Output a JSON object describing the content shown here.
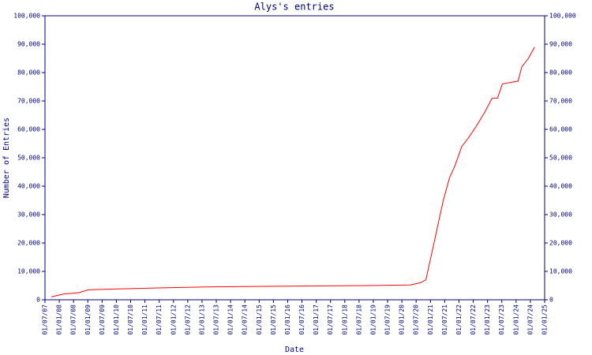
{
  "chart_data": {
    "type": "line",
    "title": "Alys's entries",
    "x_label": "Date",
    "y_label": "Number of Entries",
    "x": [
      2007.72,
      2008.14,
      2008.69,
      2009.02,
      2009.65,
      2010.76,
      2011.59,
      2013.05,
      2015.87,
      2018.77,
      2020.29,
      2020.65,
      2020.84,
      2021.06,
      2021.45,
      2021.67,
      2021.85,
      2022.1,
      2022.33,
      2022.6,
      2022.9,
      2023.16,
      2023.35,
      2023.52,
      2024.07,
      2024.2,
      2024.43,
      2024.65
    ],
    "series": [
      {
        "name": "Entries",
        "color": "#ff0000",
        "values": [
          1000,
          2000,
          2500,
          3500,
          3700,
          4000,
          4200,
          4500,
          4800,
          5000,
          5200,
          6000,
          7000,
          17000,
          35000,
          43000,
          47000,
          54000,
          57000,
          61000,
          66000,
          71000,
          71000,
          76000,
          77000,
          82000,
          85000,
          89000
        ]
      }
    ],
    "xlim": [
      2007.5,
      2025.0
    ],
    "xticks": [
      {
        "value": 2007.5,
        "label": "01/07/07"
      },
      {
        "value": 2008.0,
        "label": "01/01/08"
      },
      {
        "value": 2008.5,
        "label": "01/07/08"
      },
      {
        "value": 2009.0,
        "label": "01/01/09"
      },
      {
        "value": 2009.5,
        "label": "01/07/09"
      },
      {
        "value": 2010.0,
        "label": "01/01/10"
      },
      {
        "value": 2010.5,
        "label": "01/07/10"
      },
      {
        "value": 2011.0,
        "label": "01/01/11"
      },
      {
        "value": 2011.5,
        "label": "01/07/11"
      },
      {
        "value": 2012.0,
        "label": "01/01/12"
      },
      {
        "value": 2012.5,
        "label": "01/07/12"
      },
      {
        "value": 2013.0,
        "label": "01/01/13"
      },
      {
        "value": 2013.5,
        "label": "01/07/13"
      },
      {
        "value": 2014.0,
        "label": "01/01/14"
      },
      {
        "value": 2014.5,
        "label": "01/07/14"
      },
      {
        "value": 2015.0,
        "label": "01/01/15"
      },
      {
        "value": 2015.5,
        "label": "01/07/15"
      },
      {
        "value": 2016.0,
        "label": "01/01/16"
      },
      {
        "value": 2016.5,
        "label": "01/07/16"
      },
      {
        "value": 2017.0,
        "label": "01/01/17"
      },
      {
        "value": 2017.5,
        "label": "01/07/17"
      },
      {
        "value": 2018.0,
        "label": "01/01/18"
      },
      {
        "value": 2018.5,
        "label": "01/07/18"
      },
      {
        "value": 2019.0,
        "label": "01/01/19"
      },
      {
        "value": 2019.5,
        "label": "01/07/19"
      },
      {
        "value": 2020.0,
        "label": "01/01/20"
      },
      {
        "value": 2020.5,
        "label": "01/07/20"
      },
      {
        "value": 2021.0,
        "label": "01/01/21"
      },
      {
        "value": 2021.5,
        "label": "01/07/21"
      },
      {
        "value": 2022.0,
        "label": "01/01/22"
      },
      {
        "value": 2022.5,
        "label": "01/07/22"
      },
      {
        "value": 2023.0,
        "label": "01/01/23"
      },
      {
        "value": 2023.5,
        "label": "01/07/23"
      },
      {
        "value": 2024.0,
        "label": "01/01/24"
      },
      {
        "value": 2024.5,
        "label": "01/07/24"
      },
      {
        "value": 2025.0,
        "label": "01/01/25"
      }
    ],
    "ylim": [
      0,
      100000
    ],
    "yticks": [
      0,
      {
        "value": 10000,
        "label": "10,000"
      },
      {
        "value": 20000,
        "label": "20,000"
      },
      {
        "value": 30000,
        "label": "30,000"
      },
      {
        "value": 40000,
        "label": "40,000"
      },
      {
        "value": 50000,
        "label": "50,000"
      },
      {
        "value": 60000,
        "label": "60,000"
      },
      {
        "value": 70000,
        "label": "70,000"
      },
      {
        "value": 80000,
        "label": "80,000"
      },
      {
        "value": 90000,
        "label": "90,000"
      },
      {
        "value": 100000,
        "label": "100,000"
      }
    ],
    "right_axis_mirror": true
  }
}
